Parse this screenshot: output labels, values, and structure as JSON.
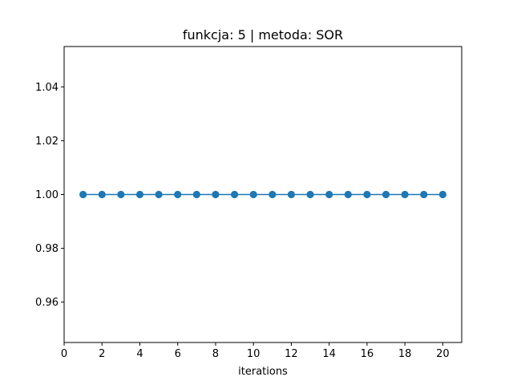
{
  "chart_data": {
    "type": "line",
    "title": "funkcja: 5 | metoda: SOR",
    "xlabel": "iterations",
    "ylabel": "",
    "xlim": [
      0,
      21
    ],
    "ylim": [
      0.945,
      1.055
    ],
    "xticks": [
      0,
      2,
      4,
      6,
      8,
      10,
      12,
      14,
      16,
      18,
      20
    ],
    "yticks": [
      0.96,
      0.98,
      1.0,
      1.02,
      1.04
    ],
    "ytick_labels": [
      "0.96",
      "0.98",
      "1.00",
      "1.02",
      "1.04"
    ],
    "grid": false,
    "series": [
      {
        "color": "#1f77b4",
        "marker": "circle",
        "x": [
          1,
          2,
          3,
          4,
          5,
          6,
          7,
          8,
          9,
          10,
          11,
          12,
          13,
          14,
          15,
          16,
          17,
          18,
          19,
          20
        ],
        "y": [
          1,
          1,
          1,
          1,
          1,
          1,
          1,
          1,
          1,
          1,
          1,
          1,
          1,
          1,
          1,
          1,
          1,
          1,
          1,
          1
        ]
      }
    ]
  }
}
